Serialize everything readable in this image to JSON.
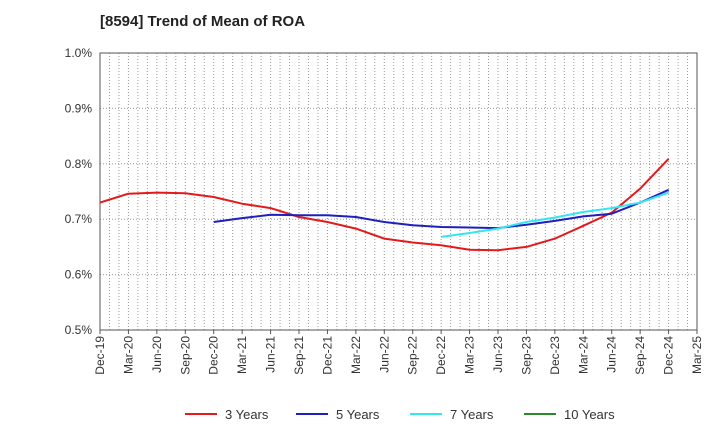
{
  "chart_data": {
    "type": "line",
    "title": "[8594]  Trend of Mean of ROA",
    "xlabel": "",
    "ylabel": "",
    "ylim": [
      0.5,
      1.0
    ],
    "yticks": [
      "0.5%",
      "0.6%",
      "0.7%",
      "0.8%",
      "0.9%",
      "1.0%"
    ],
    "ytick_values": [
      0.5,
      0.6,
      0.7,
      0.8,
      0.9,
      1.0
    ],
    "x_categories": [
      "Dec-19",
      "Mar-20",
      "Jun-20",
      "Sep-20",
      "Dec-20",
      "Mar-21",
      "Jun-21",
      "Sep-21",
      "Dec-21",
      "Mar-22",
      "Jun-22",
      "Sep-22",
      "Dec-22",
      "Mar-23",
      "Jun-23",
      "Sep-23",
      "Dec-23",
      "Mar-24",
      "Jun-24",
      "Sep-24",
      "Dec-24",
      "Mar-25"
    ],
    "grid": true,
    "legend_position": "bottom",
    "series": [
      {
        "name": "3 Years",
        "color": "#e31a1c",
        "values": [
          0.73,
          0.746,
          0.748,
          0.747,
          0.74,
          0.728,
          0.72,
          0.704,
          0.695,
          0.683,
          0.665,
          0.658,
          0.653,
          0.645,
          0.644,
          0.65,
          0.665,
          0.688,
          0.712,
          0.755,
          0.809,
          null
        ]
      },
      {
        "name": "5 Years",
        "color": "#1f1fbf",
        "values": [
          null,
          null,
          null,
          null,
          0.695,
          0.702,
          0.708,
          0.707,
          0.707,
          0.704,
          0.695,
          0.689,
          0.686,
          0.685,
          0.684,
          0.69,
          0.697,
          0.705,
          0.71,
          0.73,
          0.753,
          null
        ]
      },
      {
        "name": "7 Years",
        "color": "#33e6f2",
        "values": [
          null,
          null,
          null,
          null,
          null,
          null,
          null,
          null,
          null,
          null,
          null,
          null,
          0.668,
          0.675,
          0.683,
          0.695,
          0.703,
          0.713,
          0.72,
          0.73,
          0.748,
          null
        ]
      },
      {
        "name": "10 Years",
        "color": "#2a8a2a",
        "values": [
          null,
          null,
          null,
          null,
          null,
          null,
          null,
          null,
          null,
          null,
          null,
          null,
          null,
          null,
          null,
          null,
          null,
          null,
          null,
          null,
          null,
          null
        ]
      }
    ]
  }
}
